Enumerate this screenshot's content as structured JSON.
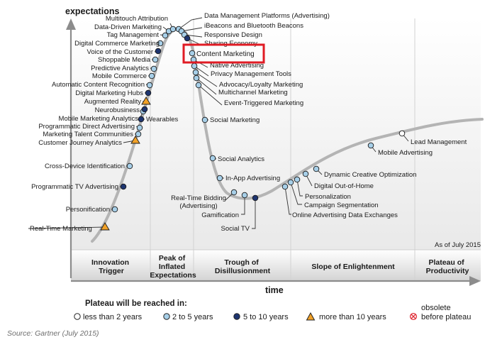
{
  "y_axis_label": "expectations",
  "x_axis_label": "time",
  "as_of": "As of July 2015",
  "phases": [
    {
      "lines": [
        "Innovation",
        "Trigger"
      ]
    },
    {
      "lines": [
        "Peak of",
        "Inflated",
        "Expectations"
      ]
    },
    {
      "lines": [
        "Trough of",
        "Disillusionment"
      ]
    },
    {
      "lines": [
        "Slope of Enlightenment"
      ]
    },
    {
      "lines": [
        "Plateau of",
        "Productivity"
      ]
    }
  ],
  "legend": {
    "title": "Plateau will be reached in:",
    "items": [
      {
        "label": "less than 2 years",
        "symbol": "white-circle"
      },
      {
        "label": "2 to 5 years",
        "symbol": "light-blue-circle"
      },
      {
        "label": "5 to 10 years",
        "symbol": "dark-blue-circle"
      },
      {
        "label": "more than 10 years",
        "symbol": "orange-triangle"
      },
      {
        "label_lines": [
          "obsolete",
          "before plateau"
        ],
        "symbol": "red-x-circle"
      }
    ]
  },
  "source": "Source: Gartner (July 2015)",
  "highlight": "Content Marketing",
  "colors": {
    "curve": "#b4b4b4",
    "white": "#ffffff",
    "light_blue": "#a7cfe8",
    "dark_blue": "#1e3570",
    "orange": "#f1a128",
    "highlight_box": "#e01b24",
    "obsolete": "#e0313a"
  },
  "technologies": [
    {
      "name": "Real-Time Marketing",
      "stage": "Innovation Trigger",
      "time_to_plateau": "more than 10 years"
    },
    {
      "name": "Personification",
      "stage": "Innovation Trigger",
      "time_to_plateau": "2 to 5 years"
    },
    {
      "name": "Programmatic TV Advertising",
      "stage": "Innovation Trigger",
      "time_to_plateau": "5 to 10 years"
    },
    {
      "name": "Cross-Device Identification",
      "stage": "Innovation Trigger",
      "time_to_plateau": "2 to 5 years"
    },
    {
      "name": "Customer Journey Analytics",
      "stage": "Innovation Trigger",
      "time_to_plateau": "more than 10 years"
    },
    {
      "name": "Marketing Talent Communities",
      "stage": "Innovation Trigger",
      "time_to_plateau": "2 to 5 years"
    },
    {
      "name": "Programmatic Direct Advertising",
      "stage": "Innovation Trigger",
      "time_to_plateau": "2 to 5 years"
    },
    {
      "name": "Wearables",
      "stage": "Innovation Trigger",
      "time_to_plateau": "5 to 10 years"
    },
    {
      "name": "Mobile Marketing Analytics",
      "stage": "Innovation Trigger",
      "time_to_plateau": "2 to 5 years"
    },
    {
      "name": "Neurobusiness",
      "stage": "Innovation Trigger",
      "time_to_plateau": "5 to 10 years"
    },
    {
      "name": "Augmented Reality",
      "stage": "Innovation Trigger",
      "time_to_plateau": "more than 10 years"
    },
    {
      "name": "Digital Marketing Hubs",
      "stage": "Peak of Inflated Expectations",
      "time_to_plateau": "5 to 10 years"
    },
    {
      "name": "Automatic Content Recognition",
      "stage": "Peak of Inflated Expectations",
      "time_to_plateau": "2 to 5 years"
    },
    {
      "name": "Mobile Commerce",
      "stage": "Peak of Inflated Expectations",
      "time_to_plateau": "2 to 5 years"
    },
    {
      "name": "Predictive Analytics",
      "stage": "Peak of Inflated Expectations",
      "time_to_plateau": "2 to 5 years"
    },
    {
      "name": "Shoppable Media",
      "stage": "Peak of Inflated Expectations",
      "time_to_plateau": "2 to 5 years"
    },
    {
      "name": "Voice of the Customer",
      "stage": "Peak of Inflated Expectations",
      "time_to_plateau": "5 to 10 years"
    },
    {
      "name": "Digital Commerce Marketing",
      "stage": "Peak of Inflated Expectations",
      "time_to_plateau": "2 to 5 years"
    },
    {
      "name": "Tag Management",
      "stage": "Peak of Inflated Expectations",
      "time_to_plateau": "2 to 5 years"
    },
    {
      "name": "Data-Driven Marketing",
      "stage": "Peak of Inflated Expectations",
      "time_to_plateau": "2 to 5 years"
    },
    {
      "name": "Multitouch Attribution",
      "stage": "Peak of Inflated Expectations",
      "time_to_plateau": "2 to 5 years"
    },
    {
      "name": "Data Management Platforms (Advertising)",
      "stage": "Peak of Inflated Expectations",
      "time_to_plateau": "2 to 5 years"
    },
    {
      "name": "iBeacons and Bluetooth Beacons",
      "stage": "Peak of Inflated Expectations",
      "time_to_plateau": "2 to 5 years"
    },
    {
      "name": "Responsive Design",
      "stage": "Peak of Inflated Expectations",
      "time_to_plateau": "2 to 5 years"
    },
    {
      "name": "Sharing Economy",
      "stage": "Peak of Inflated Expectations",
      "time_to_plateau": "5 to 10 years"
    },
    {
      "name": "Content Marketing",
      "stage": "Peak of Inflated Expectations",
      "time_to_plateau": "2 to 5 years"
    },
    {
      "name": "Native Advertising",
      "stage": "Trough of Disillusionment",
      "time_to_plateau": "2 to 5 years"
    },
    {
      "name": "Privacy Management Tools",
      "stage": "Trough of Disillusionment",
      "time_to_plateau": "2 to 5 years"
    },
    {
      "name": "Advocacy/Loyalty Marketing",
      "stage": "Trough of Disillusionment",
      "time_to_plateau": "2 to 5 years"
    },
    {
      "name": "Multichannel Marketing",
      "stage": "Trough of Disillusionment",
      "time_to_plateau": "2 to 5 years"
    },
    {
      "name": "Event-Triggered Marketing",
      "stage": "Trough of Disillusionment",
      "time_to_plateau": "2 to 5 years"
    },
    {
      "name": "Social Marketing",
      "stage": "Trough of Disillusionment",
      "time_to_plateau": "2 to 5 years"
    },
    {
      "name": "Social Analytics",
      "stage": "Trough of Disillusionment",
      "time_to_plateau": "2 to 5 years"
    },
    {
      "name": "In-App Advertising",
      "stage": "Trough of Disillusionment",
      "time_to_plateau": "2 to 5 years"
    },
    {
      "name": "Real-Time Bidding (Advertising)",
      "stage": "Trough of Disillusionment",
      "time_to_plateau": "2 to 5 years"
    },
    {
      "name": "Gamification",
      "stage": "Trough of Disillusionment",
      "time_to_plateau": "2 to 5 years"
    },
    {
      "name": "Social TV",
      "stage": "Trough of Disillusionment",
      "time_to_plateau": "5 to 10 years"
    },
    {
      "name": "Online Advertising Data Exchanges",
      "stage": "Slope of Enlightenment",
      "time_to_plateau": "2 to 5 years"
    },
    {
      "name": "Campaign Segmentation",
      "stage": "Slope of Enlightenment",
      "time_to_plateau": "2 to 5 years"
    },
    {
      "name": "Personalization",
      "stage": "Slope of Enlightenment",
      "time_to_plateau": "2 to 5 years"
    },
    {
      "name": "Digital Out-of-Home",
      "stage": "Slope of Enlightenment",
      "time_to_plateau": "2 to 5 years"
    },
    {
      "name": "Dynamic Creative Optimization",
      "stage": "Slope of Enlightenment",
      "time_to_plateau": "2 to 5 years"
    },
    {
      "name": "Mobile Advertising",
      "stage": "Slope of Enlightenment",
      "time_to_plateau": "2 to 5 years"
    },
    {
      "name": "Lead Management",
      "stage": "Slope of Enlightenment",
      "time_to_plateau": "less than 2 years"
    }
  ]
}
